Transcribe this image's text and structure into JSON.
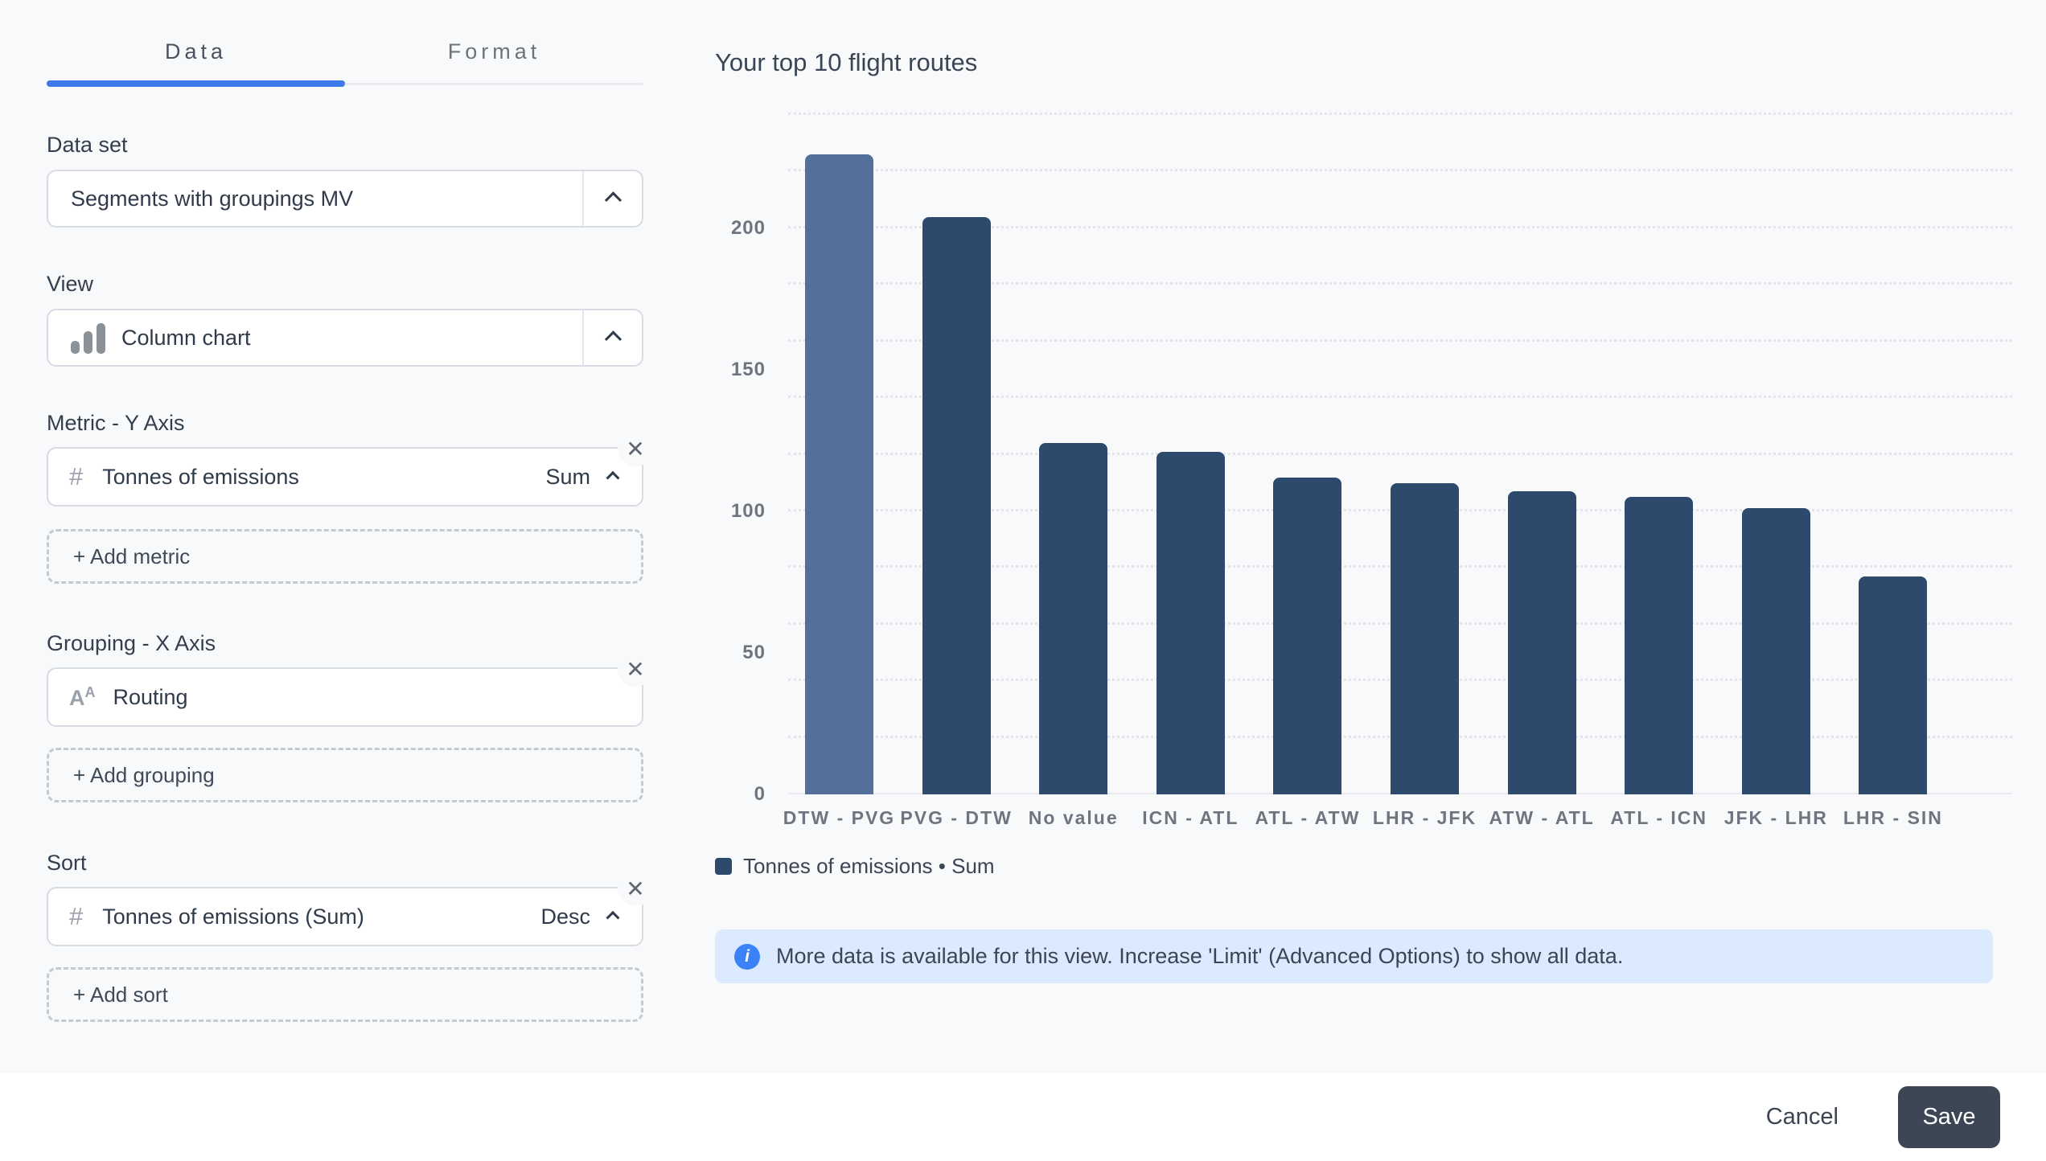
{
  "panel": {
    "tabs": [
      {
        "label": "Data",
        "active": true
      },
      {
        "label": "Format",
        "active": false
      }
    ],
    "dataset": {
      "label": "Data set",
      "value": "Segments with groupings MV"
    },
    "view": {
      "label": "View",
      "value": "Column chart"
    },
    "metric": {
      "label": "Metric - Y Axis",
      "field": "Tonnes of emissions",
      "aggregation": "Sum",
      "add_label": "+ Add metric"
    },
    "grouping": {
      "label": "Grouping - X Axis",
      "field": "Routing",
      "add_label": "+ Add grouping"
    },
    "sort": {
      "label": "Sort",
      "field": "Tonnes of emissions (Sum)",
      "order": "Desc",
      "add_label": "+ Add sort"
    },
    "icons": {
      "close": "✕",
      "hash": "#"
    }
  },
  "chart": {
    "title": "Your top 10 flight routes",
    "legend_text": "Tonnes of emissions • Sum"
  },
  "chart_data": {
    "type": "bar",
    "title": "Your top 10 flight routes",
    "categories": [
      "DTW - PVG",
      "PVG - DTW",
      "No value",
      "ICN - ATL",
      "ATL - ATW",
      "LHR - JFK",
      "ATW - ATL",
      "ATL - ICN",
      "JFK - LHR",
      "LHR - SIN"
    ],
    "values": [
      226,
      204,
      124,
      121,
      112,
      110,
      107,
      105,
      101,
      77
    ],
    "series_name": "Tonnes of emissions",
    "aggregation": "Sum",
    "xlabel": "",
    "ylabel": "",
    "ylim": [
      0,
      240
    ],
    "ytick_step": 50,
    "gridline_step": 20,
    "grid": "dotted-horizontal",
    "legend_position": "bottom-left",
    "colors": {
      "highlight_first_bar": "#53709A",
      "bar_default": "#2C4A6B"
    }
  },
  "banner": {
    "text": "More data is available for this view. Increase 'Limit' (Advanced Options) to show all data."
  },
  "footer": {
    "cancel_label": "Cancel",
    "save_label": "Save"
  }
}
